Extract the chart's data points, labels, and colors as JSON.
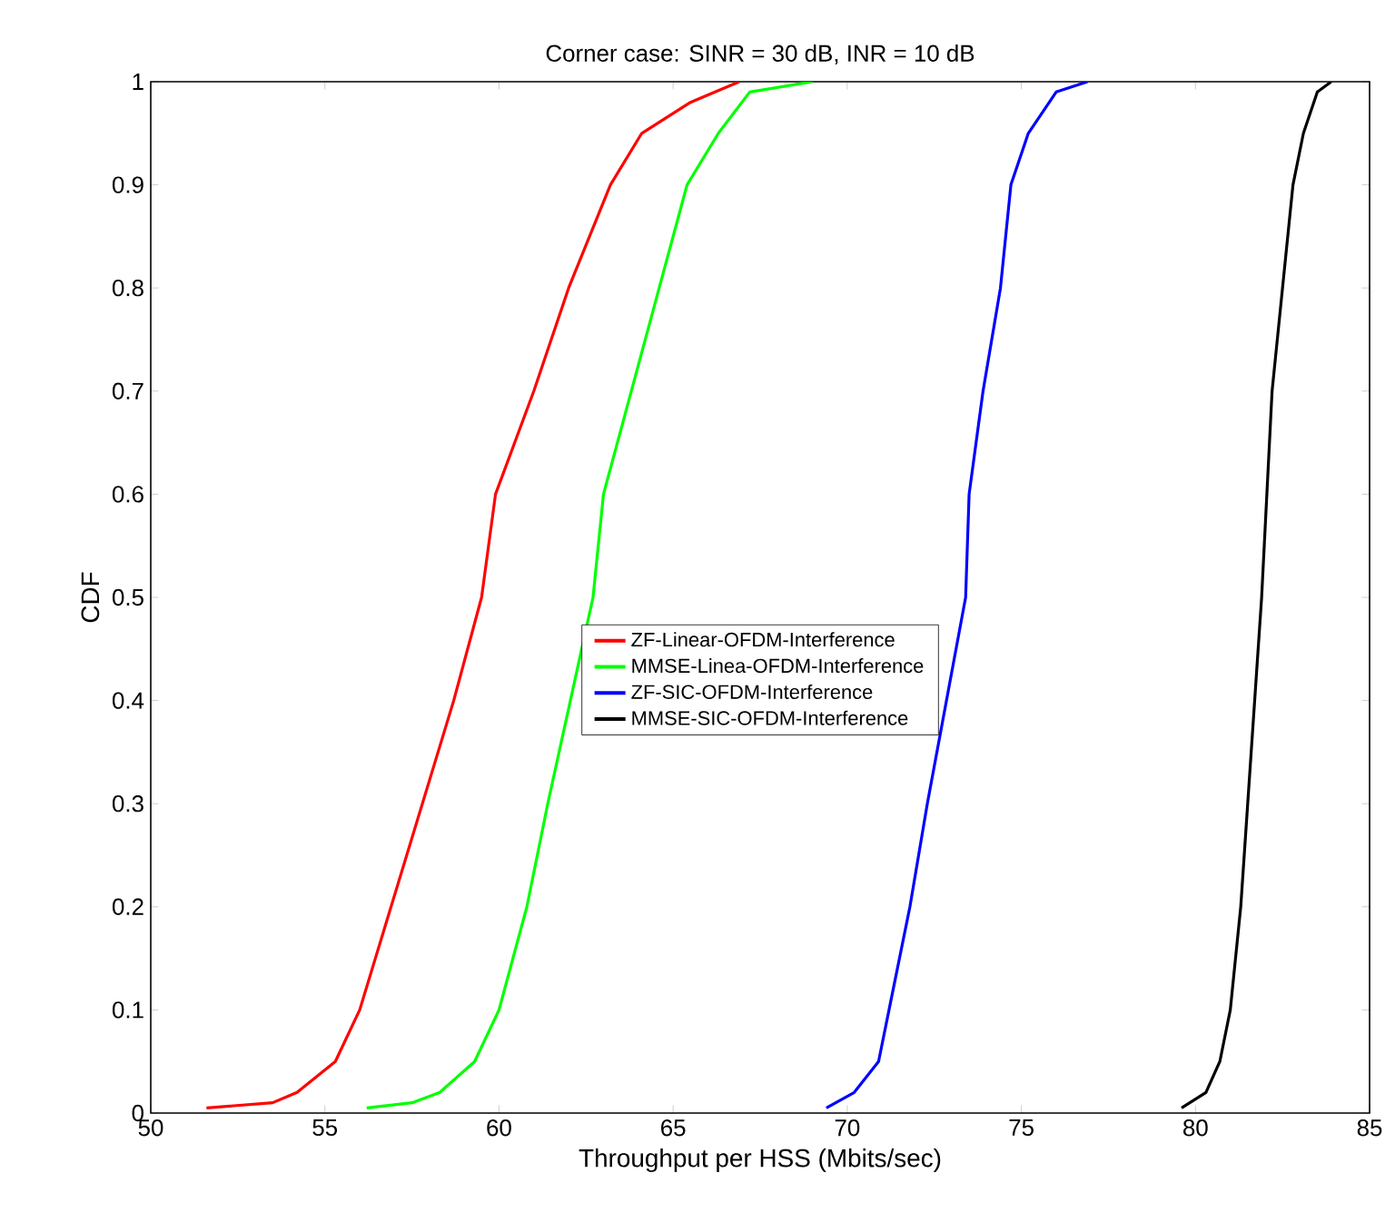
{
  "chart_data": {
    "type": "line",
    "title": "Corner case: SINR = 30 dB, INR = 10 dB",
    "xlabel": "Throughput per HSS (Mbits/sec)",
    "ylabel": "CDF",
    "xlim": [
      50,
      85
    ],
    "xticks": [
      50,
      55,
      60,
      65,
      70,
      75,
      80,
      85
    ],
    "ylim": [
      0,
      1
    ],
    "yticks": [
      0,
      0.1,
      0.2,
      0.3,
      0.4,
      0.5,
      0.6,
      0.7,
      0.8,
      0.9,
      1
    ],
    "legend": "center",
    "grid": false,
    "marker": "none",
    "line_style": "solid",
    "series": [
      {
        "name": "ZF-Linear-OFDM-Interference",
        "color": "#ff0000",
        "x": [
          51.6,
          53.5,
          54.2,
          55.3,
          56.0,
          56.9,
          57.8,
          58.7,
          59.5,
          59.9,
          61.0,
          62.0,
          63.2,
          64.1,
          65.5,
          66.9
        ],
        "values": [
          0.005,
          0.01,
          0.02,
          0.05,
          0.1,
          0.2,
          0.3,
          0.4,
          0.5,
          0.6,
          0.7,
          0.8,
          0.9,
          0.95,
          0.98,
          1.0
        ]
      },
      {
        "name": "MMSE-Linea-OFDM-Interference",
        "color": "#00ff00",
        "x": [
          56.2,
          57.5,
          58.3,
          59.3,
          60.0,
          60.8,
          61.4,
          62.7,
          63.0,
          63.8,
          64.6,
          65.4,
          66.3,
          67.2,
          69.0
        ],
        "values": [
          0.005,
          0.01,
          0.02,
          0.05,
          0.1,
          0.2,
          0.3,
          0.5,
          0.6,
          0.7,
          0.8,
          0.9,
          0.95,
          0.99,
          1.0
        ]
      },
      {
        "name": "ZF-SIC-OFDM-Interference",
        "color": "#0000ff",
        "x": [
          69.4,
          70.2,
          70.9,
          71.2,
          71.8,
          72.3,
          73.4,
          73.5,
          73.9,
          74.4,
          74.7,
          75.2,
          76.0,
          76.9
        ],
        "values": [
          0.005,
          0.02,
          0.05,
          0.1,
          0.2,
          0.3,
          0.5,
          0.6,
          0.7,
          0.8,
          0.9,
          0.95,
          0.99,
          1.0
        ]
      },
      {
        "name": "MMSE-SIC-OFDM-Interference",
        "color": "#000000",
        "x": [
          79.6,
          80.3,
          80.7,
          81.0,
          81.3,
          81.5,
          81.9,
          82.2,
          82.5,
          82.8,
          83.1,
          83.5,
          83.9
        ],
        "values": [
          0.005,
          0.02,
          0.05,
          0.1,
          0.2,
          0.3,
          0.5,
          0.7,
          0.8,
          0.9,
          0.95,
          0.99,
          1.0
        ]
      }
    ]
  }
}
